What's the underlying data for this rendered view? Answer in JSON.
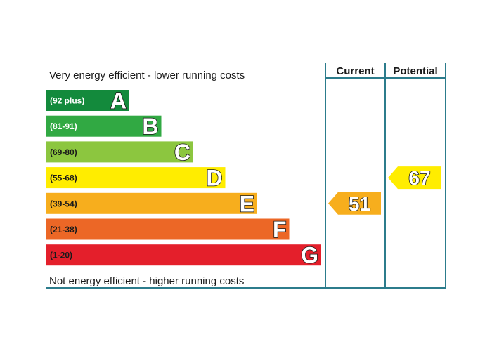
{
  "chart_data": {
    "type": "bar",
    "top_caption": "Very energy efficient - lower running costs",
    "bottom_caption": "Not energy efficient - higher running costs",
    "columns": [
      "Current",
      "Potential"
    ],
    "bands": [
      {
        "letter": "A",
        "range": "(92 plus)",
        "min": 92,
        "max": 100,
        "color": "#138a3c",
        "range_color": "#ffffff"
      },
      {
        "letter": "B",
        "range": "(81-91)",
        "min": 81,
        "max": 91,
        "color": "#31a943",
        "range_color": "#ffffff"
      },
      {
        "letter": "C",
        "range": "(69-80)",
        "min": 69,
        "max": 80,
        "color": "#8cc63f",
        "range_color": "#1a1a1a"
      },
      {
        "letter": "D",
        "range": "(55-68)",
        "min": 55,
        "max": 68,
        "color": "#ffed00",
        "range_color": "#1a1a1a"
      },
      {
        "letter": "E",
        "range": "(39-54)",
        "min": 39,
        "max": 54,
        "color": "#f7ae1d",
        "range_color": "#1a1a1a"
      },
      {
        "letter": "F",
        "range": "(21-38)",
        "min": 21,
        "max": 38,
        "color": "#ec6726",
        "range_color": "#1a1a1a"
      },
      {
        "letter": "G",
        "range": "(1-20)",
        "min": 1,
        "max": 20,
        "color": "#e41f2b",
        "range_color": "#1a1a1a"
      }
    ],
    "current": {
      "value": 51,
      "band": "E",
      "color": "#f7ae1d"
    },
    "potential": {
      "value": 67,
      "band": "D",
      "color": "#ffed00"
    },
    "frame_color": "#2c7c8c"
  }
}
